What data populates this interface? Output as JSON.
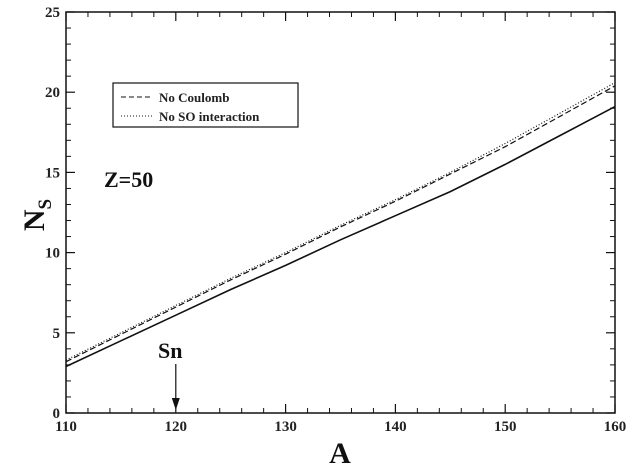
{
  "chart_data": {
    "type": "line",
    "xlabel": "A",
    "ylabel_main": "N",
    "ylabel_sub": "S",
    "xlim": [
      110,
      160
    ],
    "ylim": [
      0,
      25
    ],
    "xticks": [
      110,
      120,
      130,
      140,
      150,
      160
    ],
    "yticks": [
      0,
      5,
      10,
      15,
      20,
      25
    ],
    "grid": false,
    "legend_position": "top-left",
    "series": [
      {
        "key": "full",
        "style": "solid",
        "x": [
          110,
          115,
          120,
          125,
          130,
          135,
          140,
          145,
          150,
          155,
          160
        ],
        "y": [
          2.9,
          4.5,
          6.1,
          7.7,
          9.2,
          10.8,
          12.3,
          13.8,
          15.5,
          17.3,
          19.1
        ]
      },
      {
        "name": "No Coulomb",
        "key": "no_coulomb",
        "style": "dashed",
        "x": [
          110,
          115,
          120,
          125,
          130,
          135,
          140,
          145,
          150,
          155,
          160
        ],
        "y": [
          3.2,
          4.9,
          6.6,
          8.3,
          9.9,
          11.6,
          13.2,
          14.9,
          16.6,
          18.5,
          20.4
        ]
      },
      {
        "name": "No SO interaction",
        "key": "no_so",
        "style": "dotted",
        "x": [
          110,
          115,
          120,
          125,
          130,
          135,
          140,
          145,
          150,
          155,
          160
        ],
        "y": [
          3.3,
          5.0,
          6.7,
          8.4,
          10.0,
          11.7,
          13.3,
          15.0,
          16.8,
          18.7,
          20.6
        ]
      }
    ],
    "annotations": {
      "z_label": "Z=50",
      "sn_label": "Sn",
      "sn_x": 120
    }
  }
}
